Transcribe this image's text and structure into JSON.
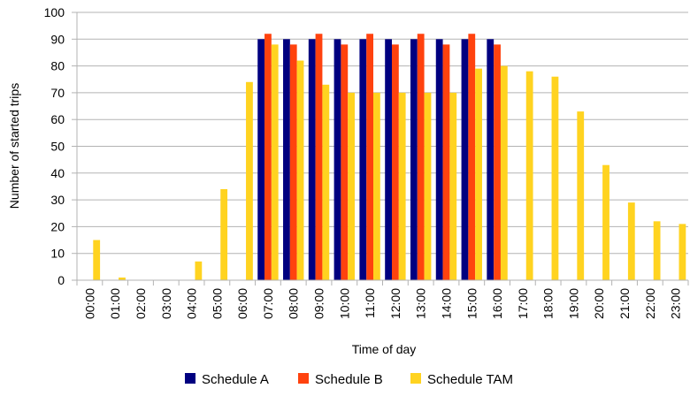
{
  "chart_data": {
    "type": "bar",
    "title": "",
    "xlabel": "Time of day",
    "ylabel": "Number of started trips",
    "ylim": [
      0,
      100
    ],
    "yticks": [
      0,
      10,
      20,
      30,
      40,
      50,
      60,
      70,
      80,
      90,
      100
    ],
    "grid": true,
    "legend_position": "bottom",
    "categories": [
      "00:00",
      "01:00",
      "02:00",
      "03:00",
      "04:00",
      "05:00",
      "06:00",
      "07:00",
      "08:00",
      "09:00",
      "10:00",
      "11:00",
      "12:00",
      "13:00",
      "14:00",
      "15:00",
      "16:00",
      "17:00",
      "18:00",
      "19:00",
      "20:00",
      "21:00",
      "22:00",
      "23:00"
    ],
    "series": [
      {
        "name": "Schedule A",
        "color": "#000080",
        "values": [
          0,
          0,
          0,
          0,
          0,
          0,
          0,
          90,
          90,
          90,
          90,
          90,
          90,
          90,
          90,
          90,
          90,
          0,
          0,
          0,
          0,
          0,
          0,
          0
        ]
      },
      {
        "name": "Schedule B",
        "color": "#ff420e",
        "values": [
          0,
          0,
          0,
          0,
          0,
          0,
          0,
          92,
          88,
          92,
          88,
          92,
          88,
          92,
          88,
          92,
          88,
          0,
          0,
          0,
          0,
          0,
          0,
          0
        ]
      },
      {
        "name": "Schedule TAM",
        "color": "#ffd320",
        "values": [
          15,
          1,
          0,
          0,
          7,
          34,
          74,
          88,
          82,
          73,
          70,
          70,
          70,
          70,
          70,
          79,
          80,
          78,
          76,
          63,
          43,
          29,
          22,
          21
        ]
      }
    ]
  }
}
